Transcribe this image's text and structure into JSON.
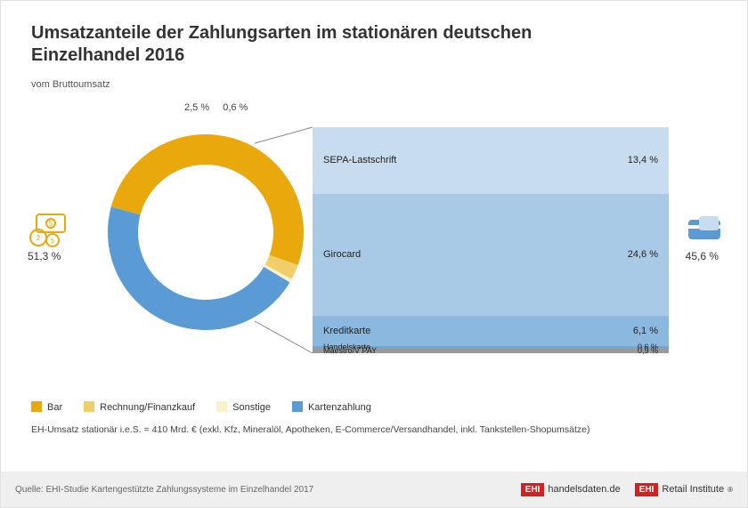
{
  "title": "Umsatzanteile der Zahlungsarten im stationären deutschen Einzelhandel 2016",
  "subtitle": "vom Bruttoumsatz",
  "colors": {
    "bar_cash": "#E9A80C",
    "rechnung": "#F2CE68",
    "sonstige": "#FBF1C9",
    "card": "#5A9BD5",
    "card_band1": "#C7DCEF",
    "card_band2": "#A9CAE6",
    "card_band3": "#8BB8DE",
    "card_band4": "#6FA7D6",
    "maestro": "#9A9A9A",
    "text": "#333333",
    "footer_bg": "#EFEFEF",
    "badge": "#D32020"
  },
  "donut": {
    "radius": 110,
    "ring_width": 34,
    "slices": [
      {
        "label": "Bar",
        "value": 51.3,
        "color": "#E9A80C"
      },
      {
        "label": "Rechnung/Finanzkauf",
        "value": 2.5,
        "color": "#F2CE68"
      },
      {
        "label": "Sonstige",
        "value": 0.6,
        "color": "#FBF1C9"
      },
      {
        "label": "Kartenzahlung",
        "value": 45.6,
        "color": "#5A9BD5"
      }
    ],
    "top_labels": [
      "2,5 %",
      "0,6 %"
    ],
    "left_label": "51,3 %",
    "right_label": "45,6 %",
    "start_angle_deg": 195
  },
  "card_breakdown": {
    "total_height": 254,
    "items": [
      {
        "name": "SEPA-Lastschrift",
        "value": 13.4,
        "display": "13,4 %",
        "color": "#C7DCEF"
      },
      {
        "name": "Girocard",
        "value": 24.6,
        "display": "24,6 %",
        "color": "#A9CAE6"
      },
      {
        "name": "Kreditkarte",
        "value": 6.1,
        "display": "6,1 %",
        "color": "#8BB8DE"
      },
      {
        "name": "Handelskarte",
        "value": 0.6,
        "display": "0,6 %",
        "color": "#6FA7D6"
      },
      {
        "name": "Maestro/V PAY",
        "value": 0.9,
        "display": "0,9 %",
        "color": "#9A9A9A"
      }
    ]
  },
  "legend": [
    {
      "color": "#E9A80C",
      "label": "Bar"
    },
    {
      "color": "#F2CE68",
      "label": "Rechnung/Finanzkauf"
    },
    {
      "color": "#FBF1C9",
      "label": "Sonstige"
    },
    {
      "color": "#5A9BD5",
      "label": "Kartenzahlung"
    }
  ],
  "note": "EH-Umsatz stationär i.e.S. = 410 Mrd. €  (exkl. Kfz, Mineralöl, Apotheken, E-Commerce/Versandhandel, inkl. Tankstellen-Shopumsätze)",
  "source": "Quelle: EHI-Studie Kartengestützte Zahlungssysteme im Einzelhandel 2017",
  "logos": {
    "badge_text": "EHI",
    "handelsdaten": "handelsdaten.de",
    "retail_institute": "Retail Institute"
  }
}
